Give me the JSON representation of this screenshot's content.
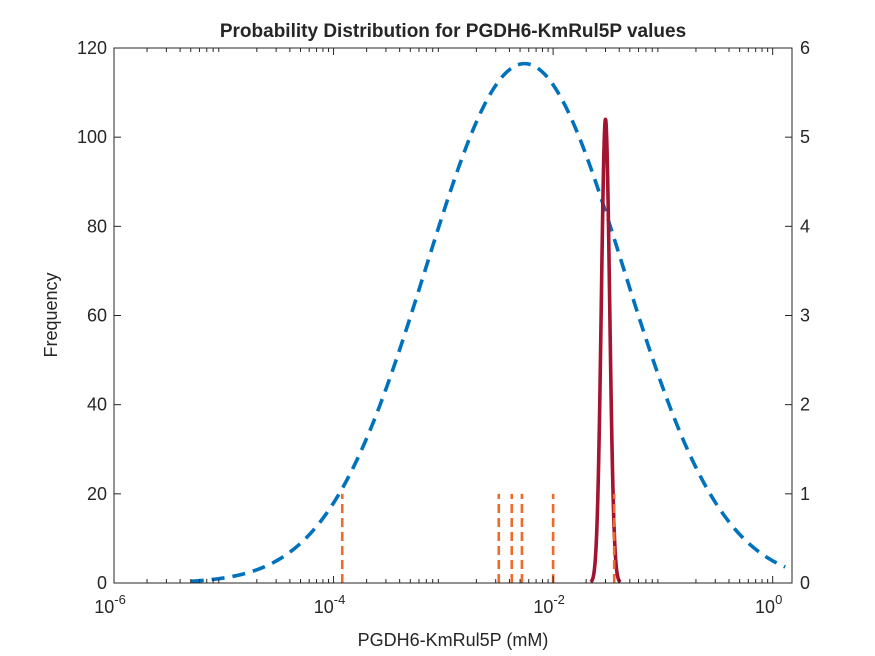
{
  "chart_data": {
    "type": "line",
    "title": "Probability Distribution for PGDH6-KmRul5P values",
    "xlabel": "PGDH6-KmRul5P (mM)",
    "ylabel": "Frequency",
    "x_scale": "log",
    "xlim": [
      1e-06,
      1.5
    ],
    "ylim_left": [
      0,
      120
    ],
    "ylim_right": [
      0,
      6
    ],
    "x_ticks": [
      {
        "value": 1e-06,
        "base": "10",
        "exp": "-6"
      },
      {
        "value": 0.0001,
        "base": "10",
        "exp": "-4"
      },
      {
        "value": 0.01,
        "base": "10",
        "exp": "-2"
      },
      {
        "value": 1,
        "base": "10",
        "exp": "0"
      }
    ],
    "y_ticks_left": [
      "0",
      "20",
      "40",
      "60",
      "80",
      "100",
      "120"
    ],
    "y_ticks_right": [
      "0",
      "1",
      "2",
      "3",
      "4",
      "5",
      "6"
    ],
    "series": [
      {
        "style": "dashed",
        "color": "#0072BD",
        "axis": "left",
        "peak_x": 0.0055,
        "peak_y": 116.5,
        "log_sigma": 0.9,
        "x_range": [
          5e-06,
          1.3
        ]
      },
      {
        "style": "solid",
        "color": "#A2142F",
        "axis": "left",
        "peak_x": 0.03,
        "peak_y": 104,
        "log_sigma": 0.038,
        "x_range": [
          0.022,
          0.041
        ]
      },
      {
        "style": "dashed-vertical-lines",
        "color": "#F06A2A",
        "axis": "right",
        "x": [
          0.00012,
          0.0032,
          0.0042,
          0.0052,
          0.01,
          0.036
        ],
        "height": 1
      }
    ],
    "colors": {
      "lognormal": "#0072BD",
      "fit": "#A2142F",
      "measurements": "#F06A2A"
    }
  }
}
